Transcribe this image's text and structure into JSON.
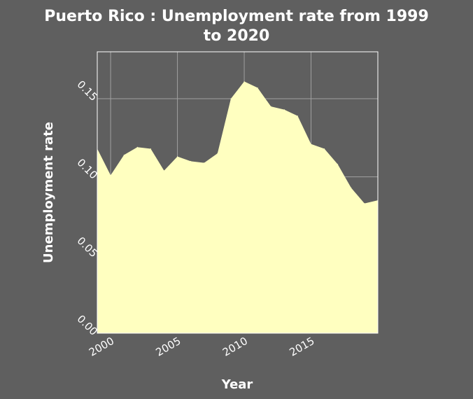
{
  "chart_data": {
    "type": "area",
    "title_line1": "Puerto Rico : Unemployment rate from 1999",
    "title_line2": "to 2020",
    "xlabel": "Year",
    "ylabel": "Unemployment rate",
    "x_ticks": [
      2000,
      2005,
      2010,
      2015
    ],
    "x_tick_labels": [
      "2000",
      "2005",
      "2010",
      "2015"
    ],
    "y_ticks": [
      0.0,
      0.05,
      0.1,
      0.15
    ],
    "y_tick_labels": [
      "0.00",
      "0.05",
      "0.10",
      "0.15"
    ],
    "xlim": [
      1999,
      2020
    ],
    "ylim": [
      0,
      0.18
    ],
    "grid": true,
    "legend": "none",
    "series": [
      {
        "x": [
          1999,
          2000,
          2001,
          2002,
          2003,
          2004,
          2005,
          2006,
          2007,
          2008,
          2009,
          2010,
          2011,
          2012,
          2013,
          2014,
          2015,
          2016,
          2017,
          2018,
          2019,
          2020
        ],
        "values": [
          0.118,
          0.101,
          0.114,
          0.119,
          0.118,
          0.104,
          0.113,
          0.11,
          0.109,
          0.115,
          0.15,
          0.161,
          0.157,
          0.145,
          0.143,
          0.139,
          0.121,
          0.118,
          0.108,
          0.093,
          0.083,
          0.085
        ]
      }
    ],
    "colors": {
      "background": "#5f5f5f",
      "fill": "#ffffc0",
      "grid": "#a0a0a0",
      "text": "#ffffff"
    }
  }
}
